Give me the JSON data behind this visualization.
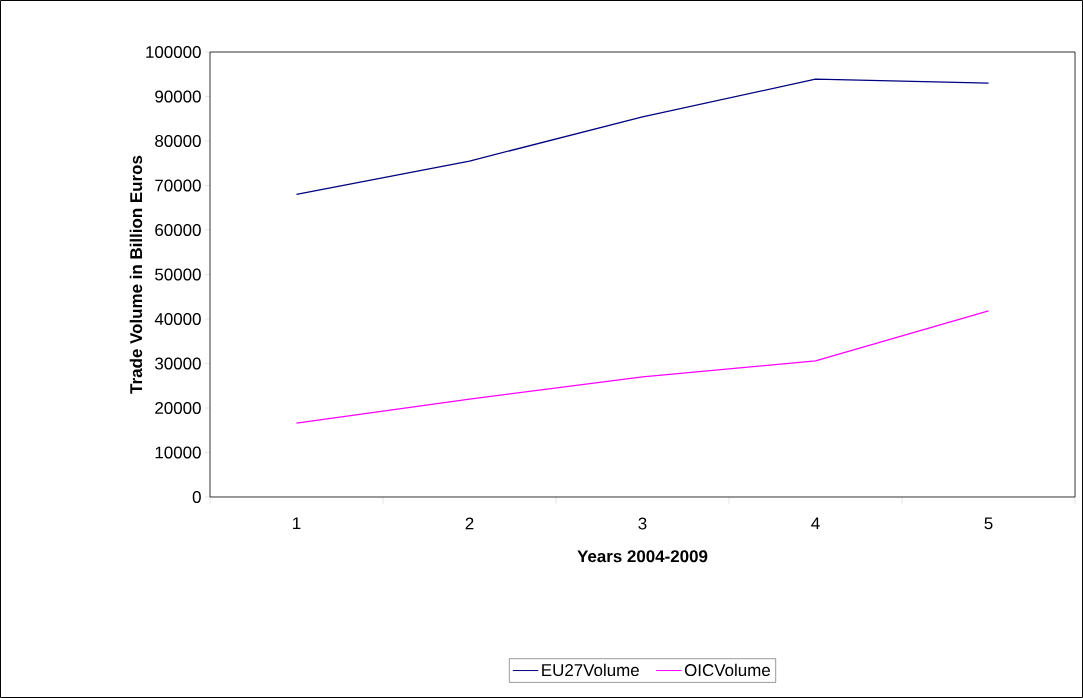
{
  "chart_data": {
    "type": "line",
    "xlabel": "Years 2004-2009",
    "ylabel": "Trade Volume in Billion Euros",
    "categories": [
      "1",
      "2",
      "3",
      "4",
      "5"
    ],
    "series": [
      {
        "name": "EU27Volume",
        "color": "#000080",
        "values": [
          68000,
          75500,
          85400,
          93900,
          93000
        ]
      },
      {
        "name": "OICVolume",
        "color": "#ff00ff",
        "values": [
          16600,
          22000,
          27000,
          30600,
          41800
        ]
      }
    ],
    "ylim": [
      0,
      100000
    ],
    "yticks": [
      0,
      10000,
      20000,
      30000,
      40000,
      50000,
      60000,
      70000,
      80000,
      90000,
      100000
    ],
    "grid": false,
    "legend": "bottom",
    "marker": "none",
    "line_style": "solid"
  }
}
